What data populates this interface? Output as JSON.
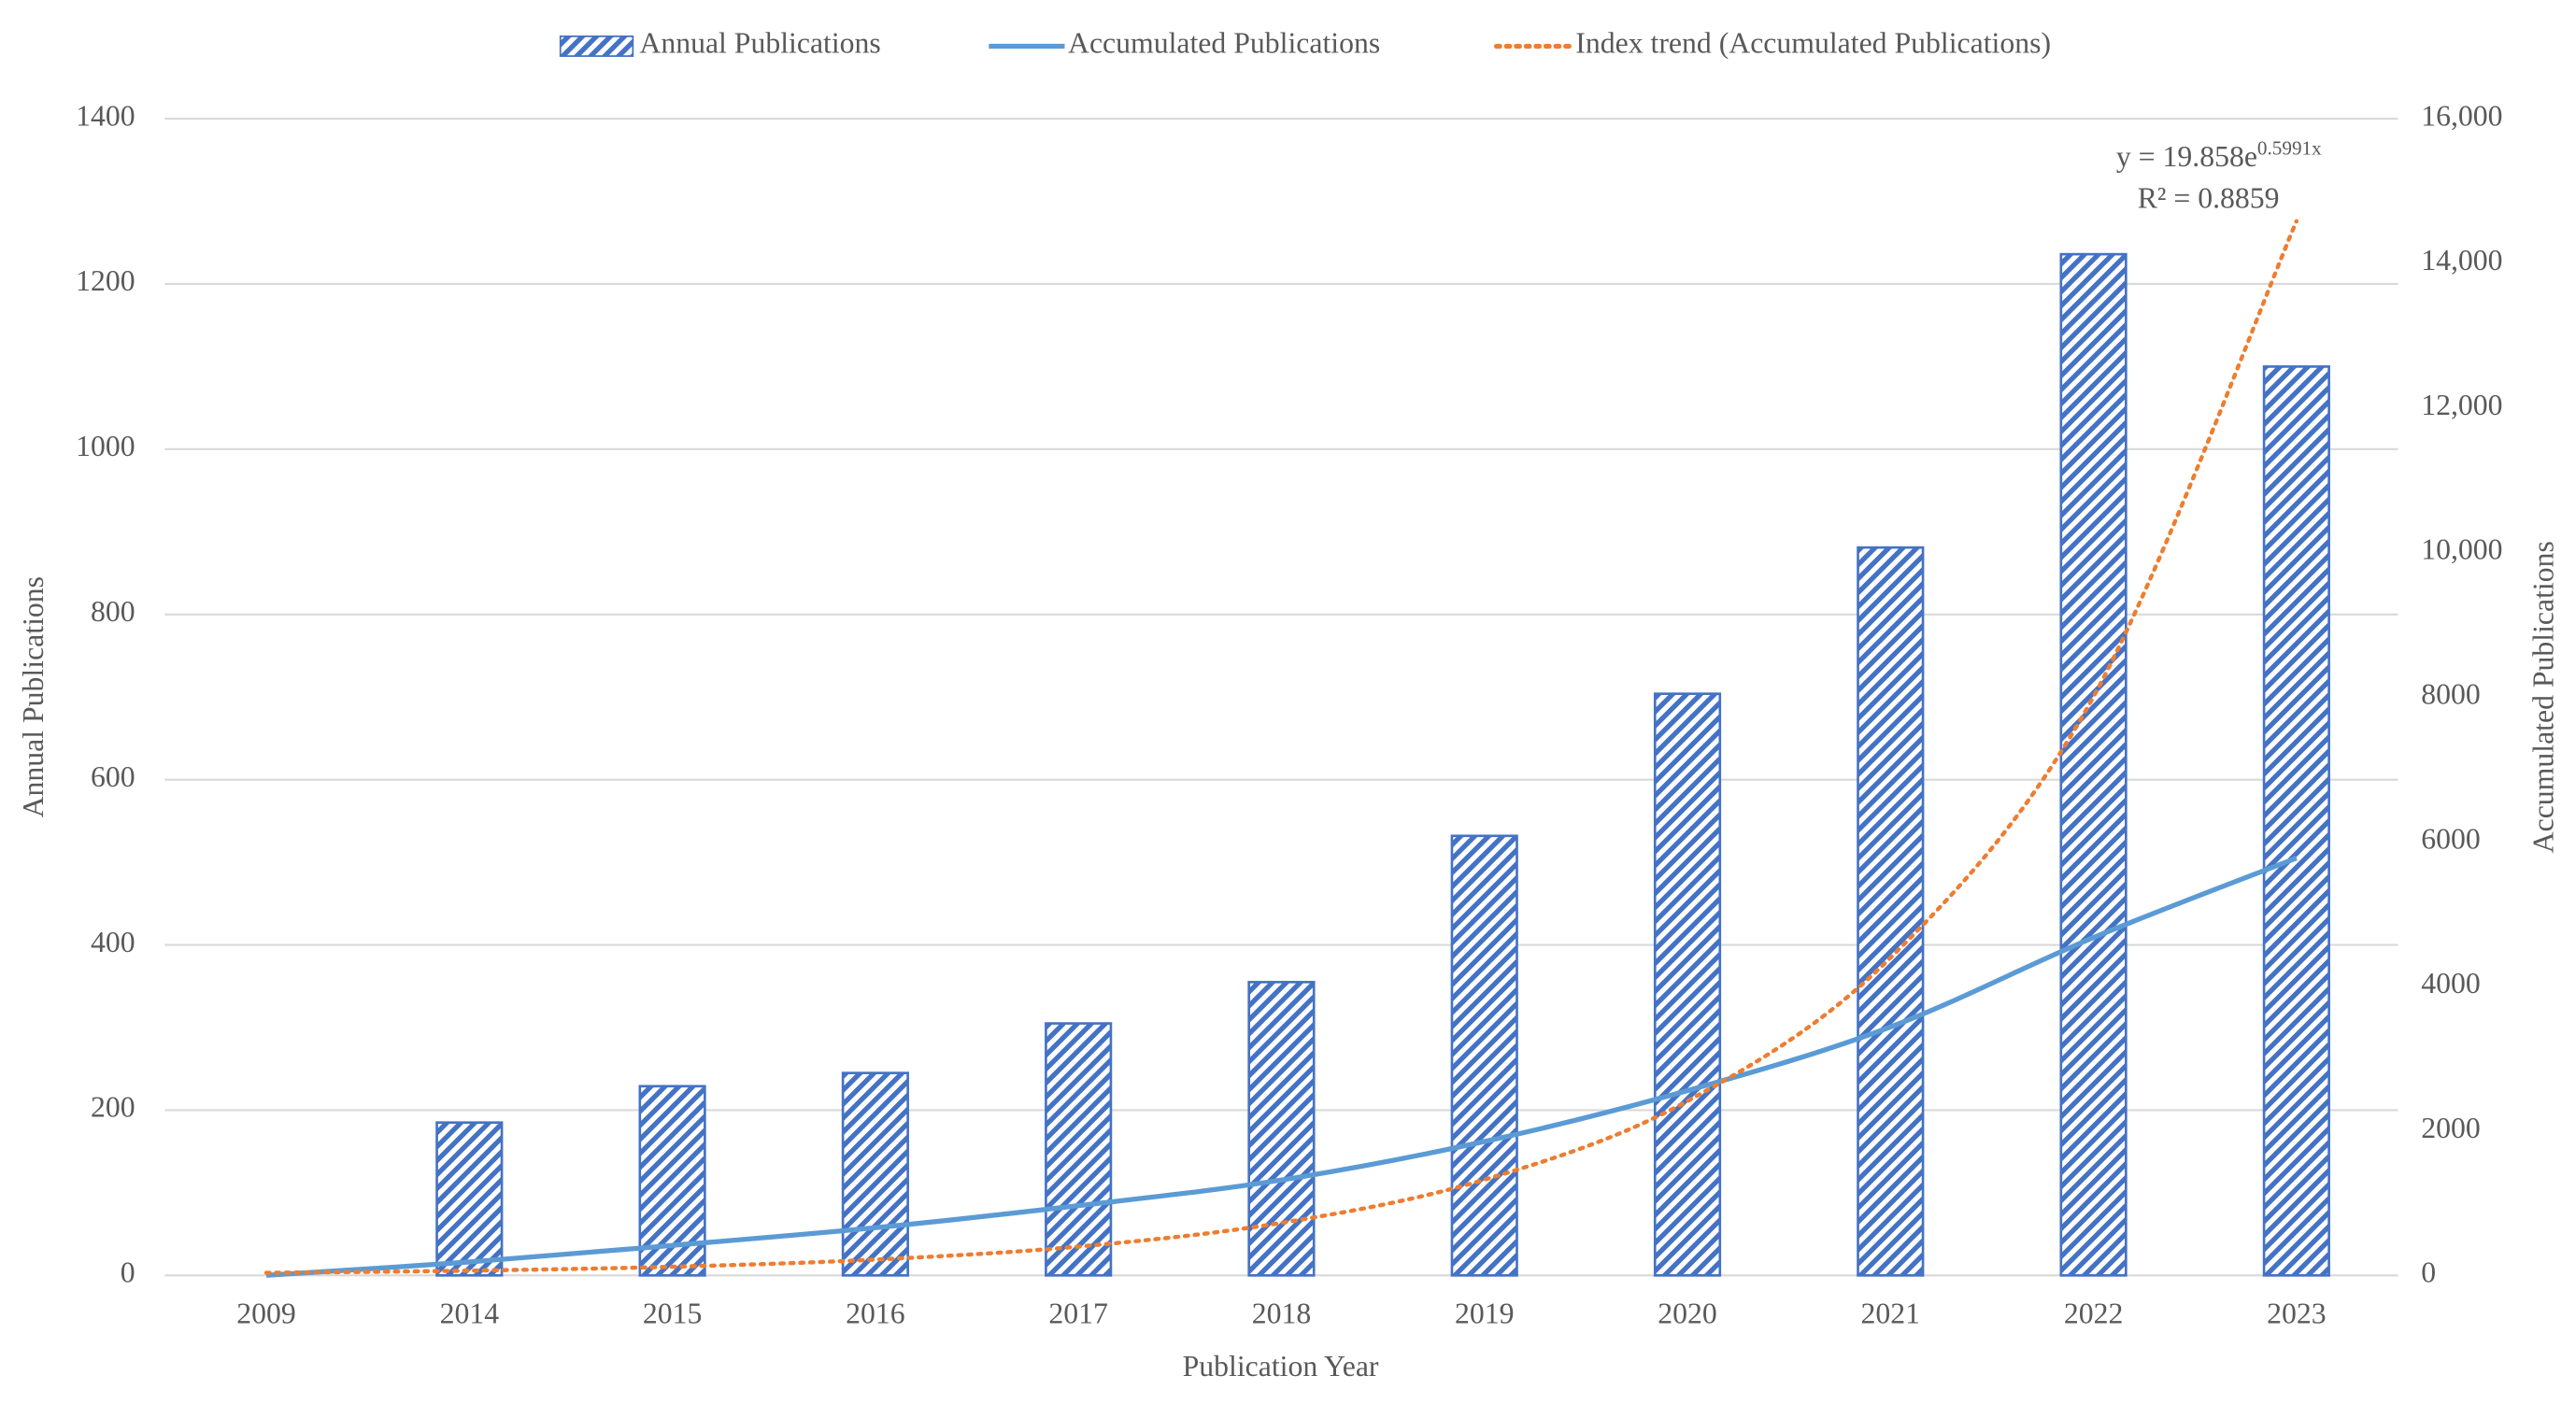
{
  "chart_data": {
    "type": "bar",
    "xlabel": "Publication Year",
    "ylabel": "Annual Publications",
    "y2label": "Accumulated Publications",
    "categories": [
      "2009",
      "2014",
      "2015",
      "2016",
      "2017",
      "2018",
      "2019",
      "2020",
      "2021",
      "2022",
      "2023"
    ],
    "series": [
      {
        "name": "Annual Publications",
        "type": "bar",
        "color": "#4472c4",
        "values": [
          0,
          185,
          229,
          245,
          305,
          355,
          532,
          704,
          881,
          1236,
          1100
        ]
      },
      {
        "name": "Accumulated Publications",
        "type": "line",
        "axis": "y2",
        "color": "#5b9bd5",
        "values": [
          1,
          186,
          415,
          660,
          965,
          1320,
          1852,
          2556,
          3437,
          4673,
          5773
        ]
      },
      {
        "name": "Index trend (Accumulated Publications)",
        "type": "line",
        "axis": "y2",
        "color": "#ed7d31",
        "dotted": true,
        "values": [
          36,
          66,
          120,
          219,
          399,
          727,
          1324,
          2412,
          4394,
          8005,
          14583
        ]
      }
    ],
    "ylim": [
      0,
      1400
    ],
    "yticks": [
      0,
      200,
      400,
      600,
      800,
      1000,
      1200,
      1400
    ],
    "y2lim": [
      0,
      16000
    ],
    "y2ticks": [
      0,
      2000,
      4000,
      6000,
      8000,
      {
        "value": 10000,
        "label": "10,000"
      },
      {
        "value": 12000,
        "label": "12,000"
      },
      {
        "value": 14000,
        "label": "14,000"
      },
      {
        "value": 16000,
        "label": "16,000"
      }
    ],
    "grid": true,
    "legend": "top",
    "trendline_equation": {
      "base": "y = 19.858e",
      "exponent": "0.5991x"
    },
    "r_squared": "R² = 0.8859"
  }
}
